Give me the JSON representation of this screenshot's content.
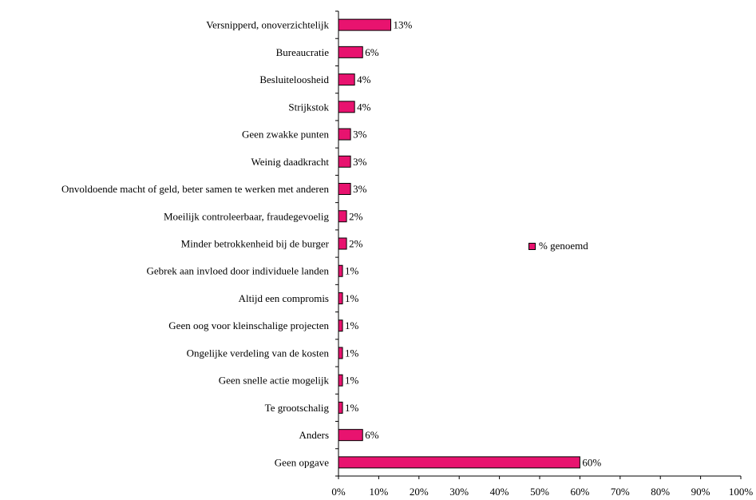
{
  "chart_data": {
    "type": "bar",
    "orientation": "horizontal",
    "categories": [
      "Versnipperd, onoverzichtelijk",
      "Bureaucratie",
      "Besluiteloosheid",
      "Strijkstok",
      "Geen zwakke punten",
      "Weinig daadkracht",
      "Onvoldoende macht of geld, beter samen te werken met anderen",
      "Moeilijk controleerbaar, fraudegevoelig",
      "Minder betrokkenheid bij de burger",
      "Gebrek aan invloed door individuele landen",
      "Altijd een compromis",
      "Geen oog voor kleinschalige projecten",
      "Ongelijke verdeling van de kosten",
      "Geen snelle actie mogelijk",
      "Te grootschalig",
      "Anders",
      "Geen opgave"
    ],
    "series": [
      {
        "name": "% genoemd",
        "values": [
          13,
          6,
          4,
          4,
          3,
          3,
          3,
          2,
          2,
          1,
          1,
          1,
          1,
          1,
          1,
          6,
          60
        ],
        "data_labels": [
          "13%",
          "6%",
          "4%",
          "4%",
          "3%",
          "3%",
          "3%",
          "2%",
          "2%",
          "1%",
          "1%",
          "1%",
          "1%",
          "1%",
          "1%",
          "6%",
          "60%"
        ],
        "color": "#e8136f"
      }
    ],
    "x_ticks": [
      "0%",
      "10%",
      "20%",
      "30%",
      "40%",
      "50%",
      "60%",
      "70%",
      "80%",
      "90%",
      "100%"
    ],
    "xlim": [
      0,
      100
    ],
    "grid": false,
    "legend": {
      "position": "right",
      "entries": [
        "% genoemd"
      ]
    },
    "title": "",
    "xlabel": "",
    "ylabel": ""
  }
}
